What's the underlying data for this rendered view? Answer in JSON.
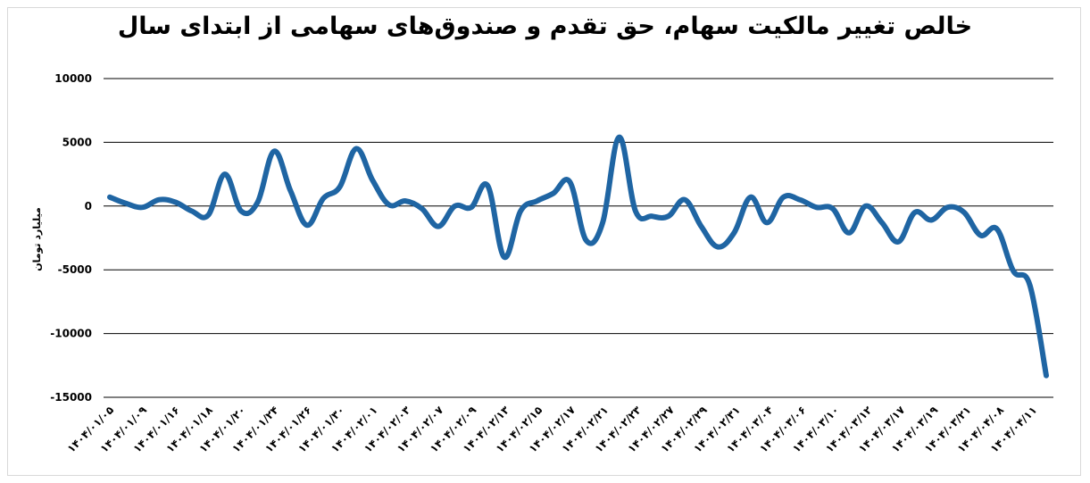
{
  "chart_data": {
    "type": "line",
    "title": "خالص تغییر مالکیت سهام، حق تقدم و صندوق‌های سهامی از ابتدای سال",
    "ylabel": "میلیارد تومان",
    "xlabel": "",
    "ylim": [
      -15000,
      10000
    ],
    "yticks": [
      10000,
      5000,
      0,
      -5000,
      -10000,
      -15000
    ],
    "ytick_labels": [
      "10000",
      "5000",
      "0",
      "-5000",
      "-10000",
      "-15000"
    ],
    "grid": true,
    "legend": "none",
    "colors": {
      "line": "#1f65a3",
      "grid": "#000000"
    },
    "x_labels": [
      "۱۴۰۴/۰۱/۰۵",
      "۱۴۰۴/۰۱/۰۹",
      "۱۴۰۴/۰۱/۱۶",
      "۱۴۰۴/۰۱/۱۸",
      "۱۴۰۴/۰۱/۲۰",
      "۱۴۰۴/۰۱/۲۴",
      "۱۴۰۴/۰۱/۲۶",
      "۱۴۰۴/۰۱/۳۰",
      "۱۴۰۴/۰۲/۰۱",
      "۱۴۰۴/۰۲/۰۳",
      "۱۴۰۴/۰۲/۰۷",
      "۱۴۰۴/۰۲/۰۹",
      "۱۴۰۴/۰۲/۱۳",
      "۱۴۰۴/۰۲/۱۵",
      "۱۴۰۴/۰۲/۱۷",
      "۱۴۰۴/۰۲/۲۱",
      "۱۴۰۴/۰۲/۲۳",
      "۱۴۰۴/۰۲/۲۷",
      "۱۴۰۴/۰۲/۲۹",
      "۱۴۰۴/۰۲/۳۱",
      "۱۴۰۴/۰۳/۰۴",
      "۱۴۰۴/۰۳/۰۶",
      "۱۴۰۴/۰۳/۱۰",
      "۱۴۰۴/۰۳/۱۲",
      "۱۴۰۴/۰۳/۱۷",
      "۱۴۰۴/۰۳/۱۹",
      "۱۴۰۴/۰۳/۲۱",
      "۱۴۰۴/۰۴/۰۸",
      "۱۴۰۴/۰۴/۱۱"
    ],
    "series": [
      {
        "values": [
          700,
          200,
          -100,
          500,
          300,
          -400,
          -700,
          2500,
          -400,
          300,
          4300,
          1200,
          -1500,
          600,
          1500,
          4500,
          2000,
          100,
          400,
          -200,
          -1600,
          0,
          -100,
          1600,
          -4000,
          -400,
          400,
          1000,
          1900,
          -2700,
          -1300,
          5400,
          -400,
          -800,
          -800,
          500,
          -1600,
          -3200,
          -2100,
          700,
          -1300,
          700,
          500,
          -100,
          -200,
          -2100,
          0,
          -1300,
          -2800,
          -500,
          -1100,
          -100,
          -500,
          -2300,
          -1800,
          -5100,
          -6200,
          -13300
        ]
      }
    ]
  }
}
